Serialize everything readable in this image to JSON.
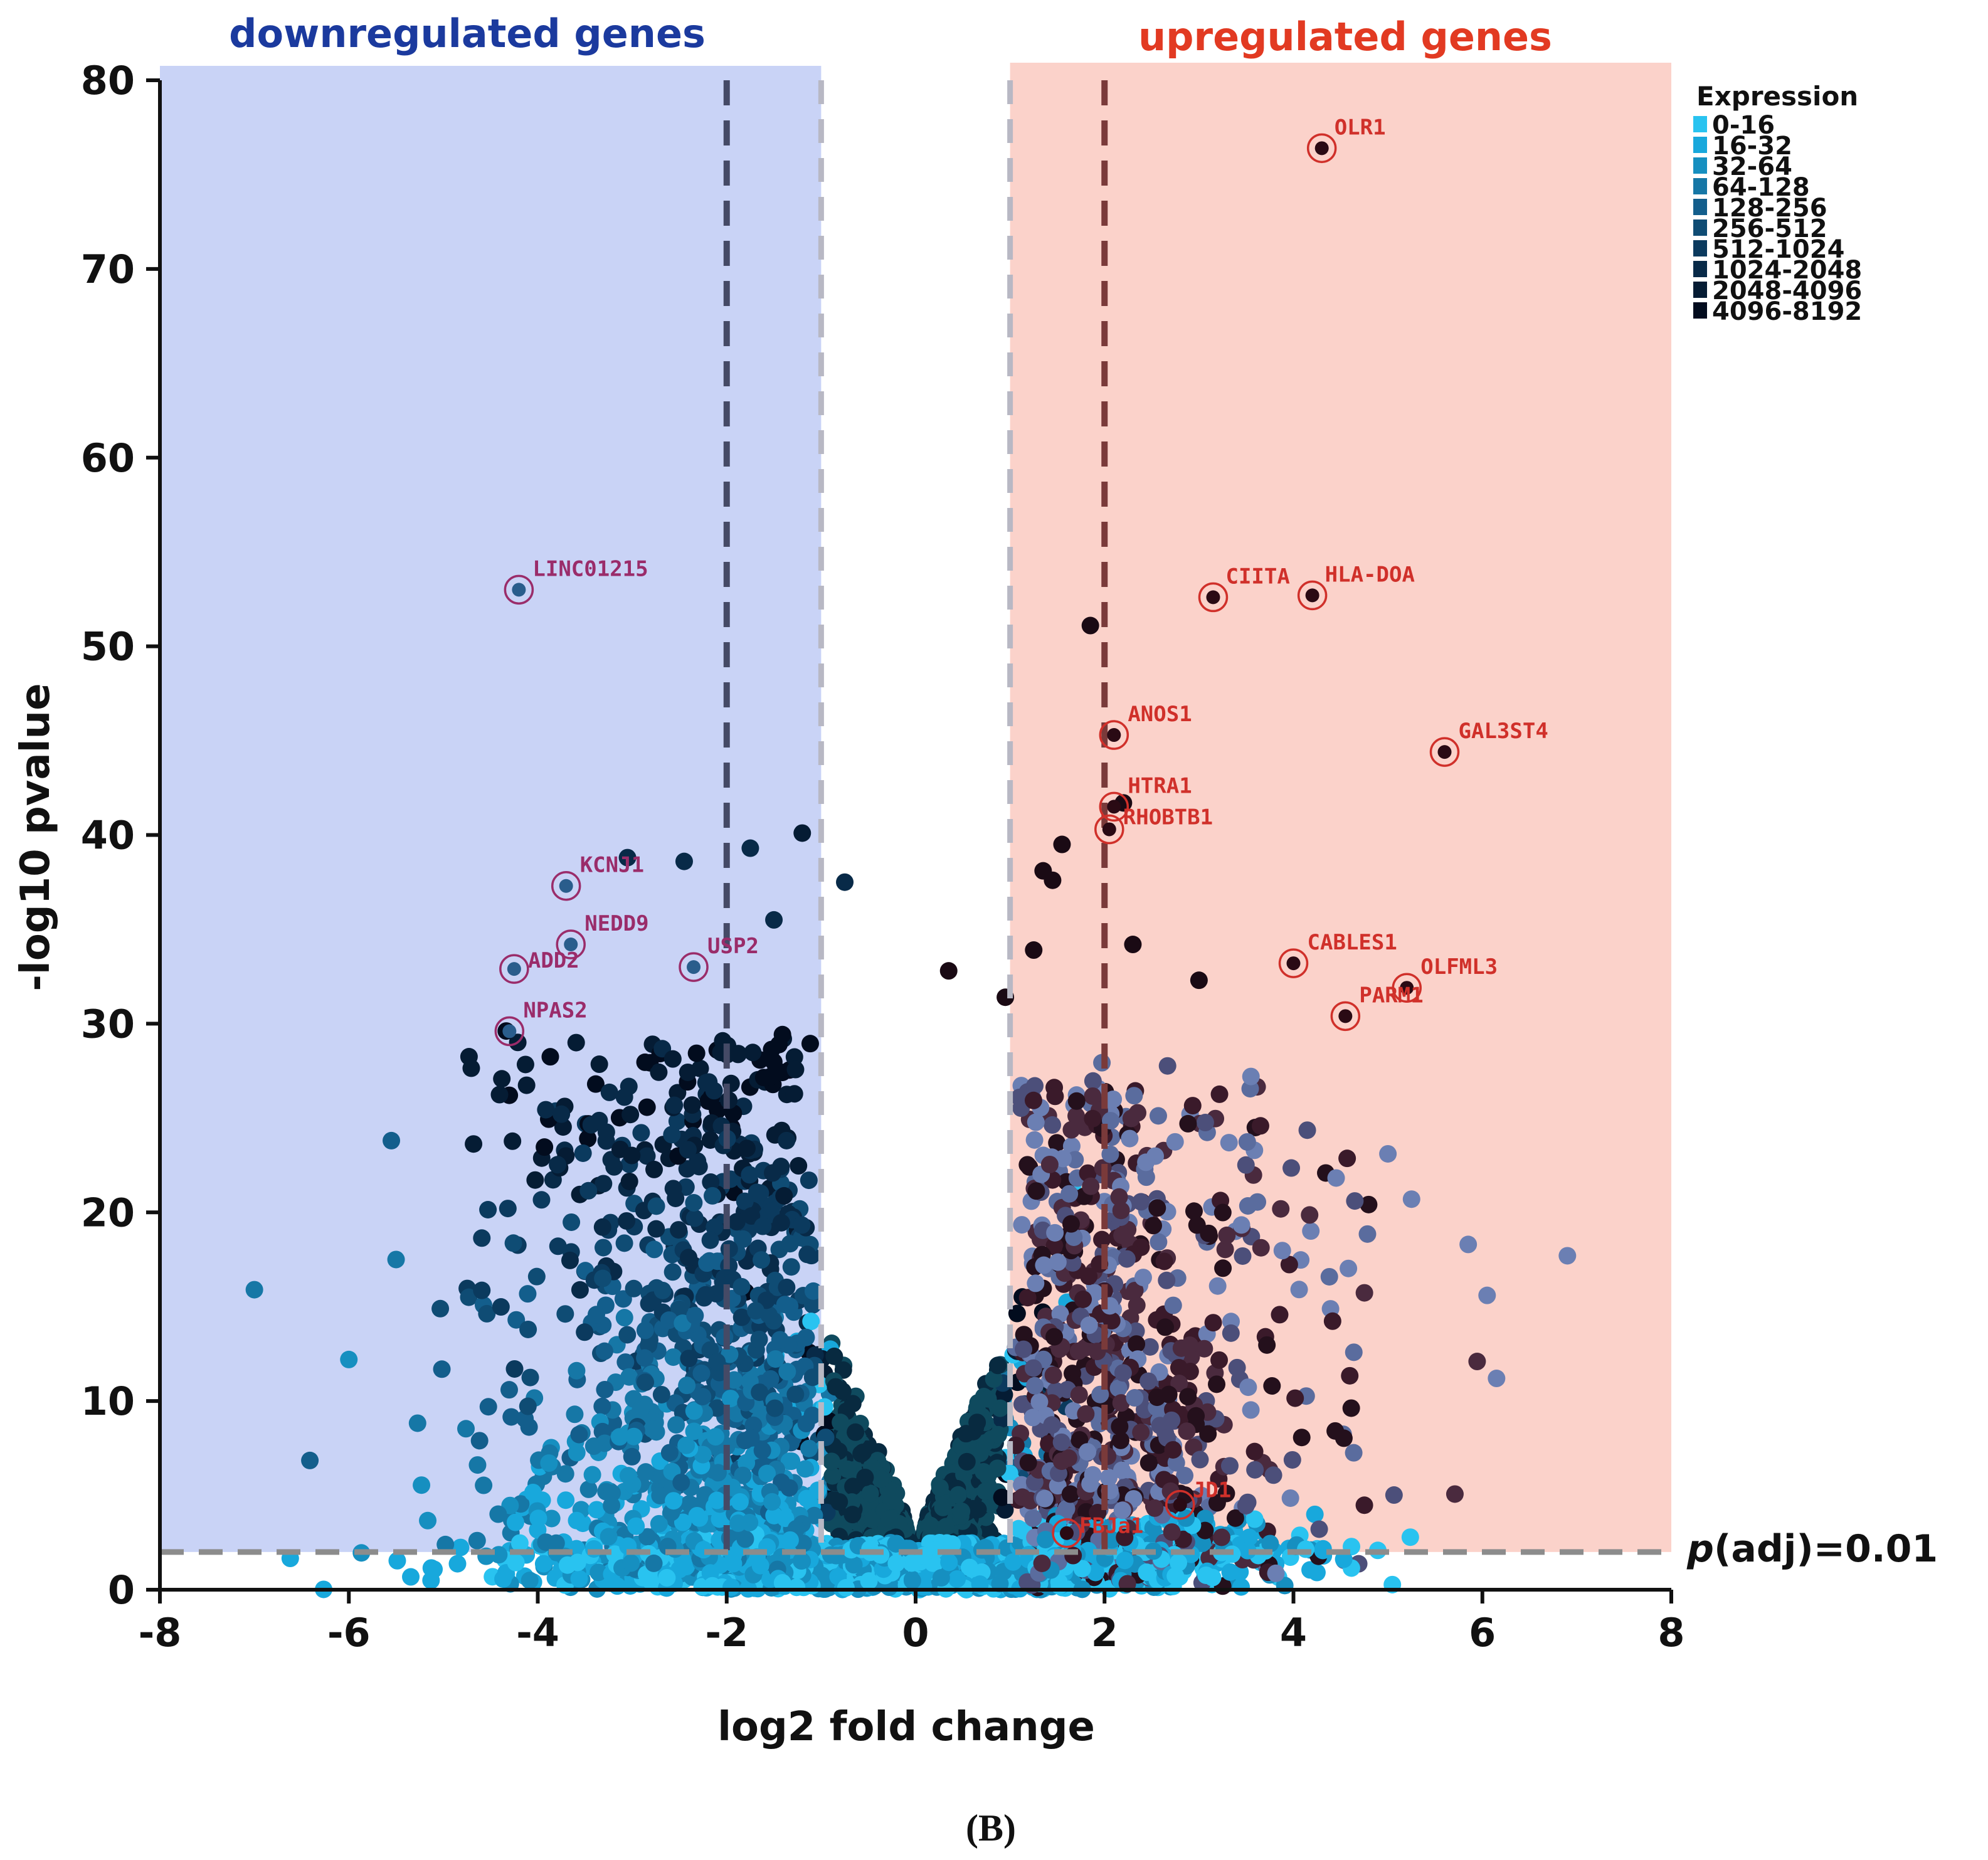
{
  "chart_data": {
    "type": "scatter",
    "subtype": "volcano",
    "xlabel": "log2 fold change",
    "ylabel": "-log10 pvalue",
    "xlim": [
      -8,
      8
    ],
    "ylim": [
      0,
      80
    ],
    "x_ticks": [
      "-8",
      "-6",
      "-4",
      "-2",
      "0",
      "2",
      "4",
      "6",
      "8"
    ],
    "y_ticks": [
      "0",
      "10",
      "20",
      "30",
      "40",
      "50",
      "60",
      "70",
      "80"
    ],
    "region_titles": {
      "down": "downregulated genes",
      "up": "upregulated genes"
    },
    "regions": {
      "down_x": [
        -8,
        -1
      ],
      "up_x": [
        1,
        8
      ]
    },
    "threshold_lines": {
      "fold_change_inner": [
        -1,
        1
      ],
      "fold_change_outer": [
        -2,
        2
      ],
      "pvalue_y": 2
    },
    "threshold_label": "p(adj)=0.01",
    "threshold_label_parts": {
      "italic": "p",
      "rest": "(adj)=0.01"
    },
    "legend": {
      "title": "Expression",
      "bins": [
        {
          "label": "0-16",
          "color": "#29c3f0"
        },
        {
          "label": "16-32",
          "color": "#18a8dc"
        },
        {
          "label": "32-64",
          "color": "#168fc0"
        },
        {
          "label": "64-128",
          "color": "#1677a6"
        },
        {
          "label": "128-256",
          "color": "#135e8c"
        },
        {
          "label": "256-512",
          "color": "#0f4c74"
        },
        {
          "label": "512-1024",
          "color": "#0b3a5e"
        },
        {
          "label": "1024-2048",
          "color": "#082a48"
        },
        {
          "label": "2048-4096",
          "color": "#051c34"
        },
        {
          "label": "4096-8192",
          "color": "#020c1e"
        }
      ]
    },
    "labeled_genes": [
      {
        "name": "OLR1",
        "x": 4.3,
        "y": 76.4,
        "side": "up"
      },
      {
        "name": "CIITA",
        "x": 3.15,
        "y": 52.6,
        "side": "up"
      },
      {
        "name": "HLA-DOA",
        "x": 4.2,
        "y": 52.7,
        "side": "up"
      },
      {
        "name": "ANOS1",
        "x": 2.1,
        "y": 45.3,
        "side": "up"
      },
      {
        "name": "GAL3ST4",
        "x": 5.6,
        "y": 44.4,
        "side": "up"
      },
      {
        "name": "HTRA1",
        "x": 2.1,
        "y": 41.5,
        "side": "up"
      },
      {
        "name": "RHOBTB1",
        "x": 2.05,
        "y": 40.3,
        "side": "up"
      },
      {
        "name": "CABLES1",
        "x": 4.0,
        "y": 33.2,
        "side": "up"
      },
      {
        "name": "OLFML3",
        "x": 5.2,
        "y": 31.9,
        "side": "up"
      },
      {
        "name": "PARM1",
        "x": 4.55,
        "y": 30.4,
        "side": "up"
      },
      {
        "name": "FBJa1",
        "x": 1.6,
        "y": 3.0,
        "side": "up"
      },
      {
        "name": "JD1",
        "x": 2.8,
        "y": 4.5,
        "side": "up"
      },
      {
        "name": "LINC01215",
        "x": -4.2,
        "y": 53.0,
        "side": "down"
      },
      {
        "name": "KCNJ1",
        "x": -3.7,
        "y": 37.3,
        "side": "down"
      },
      {
        "name": "NEDD9",
        "x": -3.65,
        "y": 34.2,
        "side": "down"
      },
      {
        "name": "ADD2",
        "x": -4.25,
        "y": 32.9,
        "side": "down"
      },
      {
        "name": "USP2",
        "x": -2.35,
        "y": 33.0,
        "side": "down"
      },
      {
        "name": "NPAS2",
        "x": -4.3,
        "y": 29.6,
        "side": "down"
      }
    ],
    "extra_points": [
      {
        "x": -7.0,
        "y": 15.9
      },
      {
        "x": -6.0,
        "y": 12.2
      },
      {
        "x": -5.5,
        "y": 17.5
      },
      {
        "x": -5.55,
        "y": 23.8
      },
      {
        "x": 6.9,
        "y": 17.7
      },
      {
        "x": 6.05,
        "y": 15.6
      },
      {
        "x": 5.85,
        "y": 18.3
      },
      {
        "x": 5.25,
        "y": 20.7
      },
      {
        "x": 5.0,
        "y": 23.1
      },
      {
        "x": 6.15,
        "y": 11.2
      },
      {
        "x": 1.85,
        "y": 51.1
      },
      {
        "x": 2.2,
        "y": 41.7
      },
      {
        "x": -1.2,
        "y": 40.1
      },
      {
        "x": -1.75,
        "y": 39.3
      },
      {
        "x": -0.75,
        "y": 37.5
      },
      {
        "x": -3.05,
        "y": 38.8
      },
      {
        "x": -2.45,
        "y": 38.6
      },
      {
        "x": -1.5,
        "y": 35.5
      },
      {
        "x": 1.55,
        "y": 39.5
      },
      {
        "x": 1.45,
        "y": 37.6
      },
      {
        "x": 1.35,
        "y": 38.1
      },
      {
        "x": 2.3,
        "y": 34.2
      },
      {
        "x": 3.0,
        "y": 32.3
      },
      {
        "x": 3.55,
        "y": 27.2
      },
      {
        "x": 0.35,
        "y": 32.8
      },
      {
        "x": 0.95,
        "y": 31.4
      },
      {
        "x": 1.25,
        "y": 33.9
      }
    ],
    "panel_label": "(B)"
  }
}
